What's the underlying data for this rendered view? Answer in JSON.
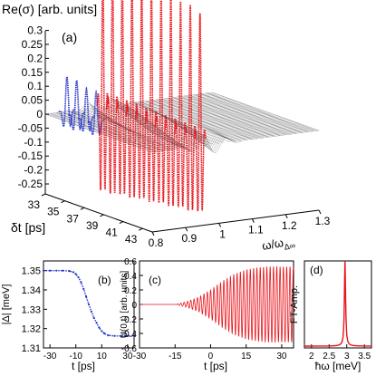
{
  "colors": {
    "red": "#e8141c",
    "blue": "#2233cc",
    "mesh": "#000000"
  },
  "chart_data": [
    {
      "type": "surface3d",
      "panel_label": "(a)",
      "zlabel": "Re(σ) [arb. units]",
      "ylabel": "δt [ps]",
      "xlabel": "ω/ω",
      "xlabel_sub": "Δ∞",
      "zticks": [
        "0.3",
        "0.25",
        "0.2",
        "0.15",
        "0.1",
        "0.05",
        "0",
        "-0.05",
        "-0.1",
        "-0.15",
        "-0.2",
        "-0.25"
      ],
      "zlim": [
        -0.27,
        0.32
      ],
      "yticks": [
        "33",
        "35",
        "37",
        "39",
        "41",
        "43"
      ],
      "ylim": [
        33,
        44
      ],
      "xticks": [
        "0.8",
        "0.9",
        "1",
        "1.1",
        "1.2",
        "1.3"
      ],
      "xlim": [
        0.8,
        1.3
      ],
      "series": [
        {
          "color": "red",
          "delta_t": [
            33,
            34,
            35,
            36,
            37,
            38,
            39,
            40,
            41,
            42,
            43
          ],
          "amplitude": [
            0.31,
            0.31,
            0.3,
            0.3,
            0.29,
            0.29,
            0.28,
            0.28,
            0.27,
            0.27,
            0.26
          ]
        },
        {
          "color": "blue",
          "delta_t": [
            33,
            34,
            35,
            36
          ],
          "amplitude": [
            0.07,
            0.07,
            0.06,
            0.06
          ]
        }
      ]
    },
    {
      "type": "line",
      "panel_label": "(b)",
      "xlabel": "t [ps]",
      "ylabel": "|Δ| [meV]",
      "xticks": [
        "-30",
        "-10",
        "10",
        "30"
      ],
      "yticks": [
        "1.35",
        "1.34",
        "1.33",
        "1.32",
        "1.31"
      ],
      "xlim": [
        -35,
        35
      ],
      "ylim": [
        1.31,
        1.355
      ],
      "series": [
        {
          "x": [
            -35,
            -30,
            -25,
            -20,
            -15,
            -12,
            -10,
            -8,
            -6,
            -4,
            -2,
            0,
            2,
            4,
            6,
            8,
            10,
            12,
            15,
            20,
            25,
            30,
            35
          ],
          "y": [
            1.35,
            1.35,
            1.35,
            1.35,
            1.3498,
            1.3492,
            1.3482,
            1.3465,
            1.344,
            1.3405,
            1.3365,
            1.3325,
            1.3288,
            1.3255,
            1.323,
            1.3205,
            1.3187,
            1.3175,
            1.3165,
            1.3162,
            1.3162,
            1.3162,
            1.3162
          ]
        }
      ]
    },
    {
      "type": "line",
      "panel_label": "(c)",
      "xlabel": "t [ps]",
      "ylabel": "U(0,t) [arb. units]",
      "xticks": [
        "-30",
        "-15",
        "0",
        "15",
        "30"
      ],
      "yticks": [
        "0.6",
        "0.4",
        "0.2",
        "0",
        "-0.2",
        "-0.4",
        "-0.6"
      ],
      "xlim": [
        -30,
        35
      ],
      "ylim": [
        -0.6,
        0.6
      ],
      "series": [
        {
          "x": [
            -30,
            -15,
            -10,
            -5,
            0,
            5,
            10,
            15,
            20,
            25,
            30,
            35
          ],
          "envelope": [
            0.0,
            0.0,
            0.04,
            0.1,
            0.2,
            0.32,
            0.42,
            0.48,
            0.51,
            0.52,
            0.52,
            0.52
          ]
        }
      ]
    },
    {
      "type": "line",
      "panel_label": "(d)",
      "xlabel": "ħω [meV]",
      "ylabel": "FT-Amp.",
      "xticks": [
        "2",
        "2.5",
        "3",
        "3.5"
      ],
      "xlim": [
        1.8,
        3.7
      ],
      "series": [
        {
          "peak_position": 2.95
        }
      ]
    }
  ]
}
